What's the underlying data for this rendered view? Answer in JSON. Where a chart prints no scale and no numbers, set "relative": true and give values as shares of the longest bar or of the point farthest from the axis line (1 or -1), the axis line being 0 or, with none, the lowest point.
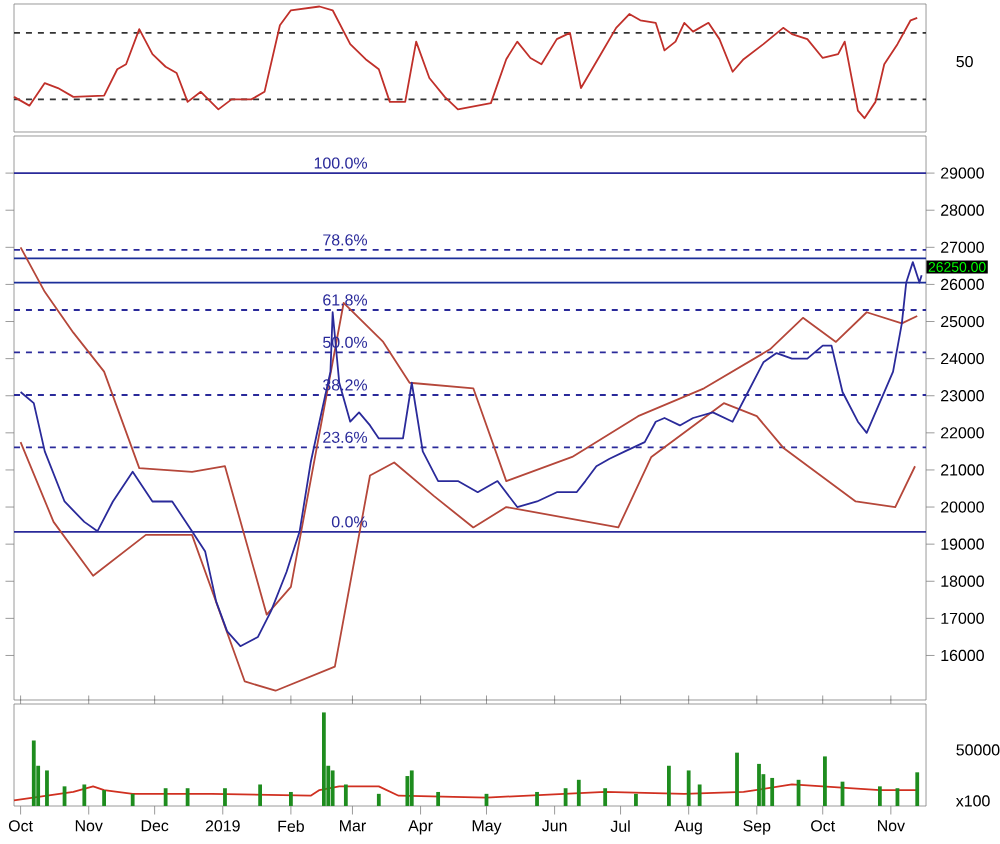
{
  "chart_data": [
    {
      "type": "line",
      "relative": true,
      "tick_labels": false,
      "xlim": [
        "2018-09-28",
        "2019-11-17"
      ],
      "annotations": [
        "50"
      ],
      "ref_lines": [
        {
          "axis": "y",
          "value": 0.79,
          "color": "#333333",
          "line_style": "dashed"
        },
        {
          "axis": "y",
          "value": 0.26,
          "color": "#333333",
          "line_style": "dashed"
        }
      ],
      "series": [
        {
          "color": "#c0302a",
          "x": [
            "2018-09-28",
            "2018-10-05",
            "2018-10-12",
            "2018-10-18",
            "2018-10-25",
            "2018-11-08",
            "2018-11-14",
            "2018-11-18",
            "2018-11-24",
            "2018-11-30",
            "2018-12-06",
            "2018-12-11",
            "2018-12-16",
            "2018-12-22",
            "2018-12-30",
            "2019-01-05",
            "2019-01-14",
            "2019-01-20",
            "2019-01-27",
            "2019-02-01",
            "2019-02-14",
            "2019-02-20",
            "2019-02-28",
            "2019-03-07",
            "2019-03-13",
            "2019-03-18",
            "2019-03-25",
            "2019-03-30",
            "2019-04-05",
            "2019-04-12",
            "2019-04-18",
            "2019-05-03",
            "2019-05-10",
            "2019-05-15",
            "2019-05-21",
            "2019-05-26",
            "2019-06-02",
            "2019-06-08",
            "2019-06-13",
            "2019-06-22",
            "2019-06-29",
            "2019-07-05",
            "2019-07-10",
            "2019-07-17",
            "2019-07-21",
            "2019-07-26",
            "2019-07-30",
            "2019-08-03",
            "2019-08-10",
            "2019-08-15",
            "2019-08-21",
            "2019-08-26",
            "2019-09-04",
            "2019-09-13",
            "2019-09-17",
            "2019-09-24",
            "2019-10-01",
            "2019-10-08",
            "2019-10-11",
            "2019-10-17",
            "2019-10-20",
            "2019-10-25",
            "2019-10-29",
            "2019-11-04",
            "2019-11-10",
            "2019-11-13"
          ],
          "values": [
            0.28,
            0.21,
            0.39,
            0.35,
            0.28,
            0.29,
            0.5,
            0.54,
            0.82,
            0.62,
            0.52,
            0.47,
            0.24,
            0.32,
            0.18,
            0.26,
            0.26,
            0.32,
            0.85,
            0.97,
            1.0,
            0.97,
            0.7,
            0.58,
            0.5,
            0.24,
            0.24,
            0.72,
            0.43,
            0.28,
            0.18,
            0.23,
            0.58,
            0.72,
            0.59,
            0.54,
            0.74,
            0.79,
            0.35,
            0.62,
            0.83,
            0.94,
            0.89,
            0.87,
            0.65,
            0.72,
            0.87,
            0.8,
            0.87,
            0.74,
            0.48,
            0.58,
            0.7,
            0.83,
            0.78,
            0.74,
            0.59,
            0.62,
            0.72,
            0.17,
            0.11,
            0.24,
            0.54,
            0.7,
            0.89,
            0.91
          ]
        }
      ]
    },
    {
      "type": "line",
      "tick_labels": "y",
      "xlim": [
        "2018-09-28",
        "2019-11-17"
      ],
      "ylim": [
        14800,
        30000
      ],
      "yticks": [
        16000,
        17000,
        18000,
        19000,
        20000,
        21000,
        22000,
        23000,
        24000,
        25000,
        26000,
        27000,
        28000,
        29000
      ],
      "annotations": [
        {
          "text": "26250.00",
          "x": "2019-11-17",
          "y": 26250
        },
        {
          "text": "100.0%",
          "x": "2019-03-09",
          "y": 29000
        },
        {
          "text": "78.6%",
          "x": "2019-03-09",
          "y": 26930
        },
        {
          "text": "61.8%",
          "x": "2019-03-09",
          "y": 25310
        },
        {
          "text": "50.0%",
          "x": "2019-03-09",
          "y": 24170
        },
        {
          "text": "38.2%",
          "x": "2019-03-09",
          "y": 23020
        },
        {
          "text": "23.6%",
          "x": "2019-03-09",
          "y": 21610
        },
        {
          "text": "0.0%",
          "x": "2019-03-09",
          "y": 19330
        }
      ],
      "ref_lines": [
        {
          "axis": "y",
          "value": 29000,
          "color": "#2a2a9a",
          "line_style": "solid"
        },
        {
          "axis": "y",
          "value": 26930,
          "color": "#2a2a9a",
          "line_style": "dashed"
        },
        {
          "axis": "y",
          "value": 25310,
          "color": "#2a2a9a",
          "line_style": "dashed"
        },
        {
          "axis": "y",
          "value": 24170,
          "color": "#2a2a9a",
          "line_style": "dashed"
        },
        {
          "axis": "y",
          "value": 23020,
          "color": "#2a2a9a",
          "line_style": "dashed"
        },
        {
          "axis": "y",
          "value": 21610,
          "color": "#2a2a9a",
          "line_style": "dashed"
        },
        {
          "axis": "y",
          "value": 19330,
          "color": "#2a2a9a",
          "line_style": "solid"
        },
        {
          "axis": "y",
          "value": 26700,
          "color": "#1c2f99",
          "line_style": "solid"
        },
        {
          "axis": "y",
          "value": 26050,
          "color": "#1c2f99",
          "line_style": "solid"
        }
      ],
      "series": [
        {
          "color": "#b5473a",
          "x": [
            "2018-10-01",
            "2018-10-12",
            "2018-10-25",
            "2018-11-08",
            "2018-11-24",
            "2018-12-18",
            "2019-01-02",
            "2019-01-21",
            "2019-02-01",
            "2019-02-25",
            "2019-03-15",
            "2019-03-27",
            "2019-04-25",
            "2019-05-10",
            "2019-06-09",
            "2019-07-09",
            "2019-08-08",
            "2019-09-07",
            "2019-09-22",
            "2019-10-07",
            "2019-10-21",
            "2019-11-06",
            "2019-11-13"
          ],
          "values": [
            27000,
            25800,
            24700,
            23650,
            21050,
            20950,
            21100,
            17100,
            17850,
            25500,
            24450,
            23350,
            23200,
            20700,
            21350,
            22450,
            23200,
            24250,
            25100,
            24450,
            25250,
            24950,
            25150
          ]
        },
        {
          "color": "#b5473a",
          "x": [
            "2018-10-01",
            "2018-10-16",
            "2018-11-03",
            "2018-11-27",
            "2018-12-18",
            "2019-01-11",
            "2019-01-25",
            "2019-02-21",
            "2019-03-09",
            "2019-03-20",
            "2019-04-07",
            "2019-04-25",
            "2019-05-10",
            "2019-06-30",
            "2019-07-15",
            "2019-08-17",
            "2019-09-01",
            "2019-09-13",
            "2019-10-16",
            "2019-11-03",
            "2019-11-12"
          ],
          "values": [
            21750,
            19600,
            18150,
            19250,
            19250,
            15300,
            15050,
            15700,
            20850,
            21200,
            20300,
            19450,
            20000,
            19450,
            21350,
            22800,
            22450,
            21600,
            20150,
            20000,
            21100
          ]
        },
        {
          "color": "#2a2a9a",
          "x": [
            "2018-10-01",
            "2018-10-07",
            "2018-10-12",
            "2018-10-21",
            "2018-10-30",
            "2018-11-05",
            "2018-11-12",
            "2018-11-21",
            "2018-11-30",
            "2018-12-09",
            "2018-12-18",
            "2018-12-24",
            "2018-12-29",
            "2019-01-03",
            "2019-01-09",
            "2019-01-17",
            "2019-01-23",
            "2019-01-30",
            "2019-02-05",
            "2019-02-10",
            "2019-02-14",
            "2019-02-19",
            "2019-02-20",
            "2019-02-23",
            "2019-02-28",
            "2019-03-04",
            "2019-03-09",
            "2019-03-13",
            "2019-03-18",
            "2019-03-24",
            "2019-03-28",
            "2019-04-02",
            "2019-04-09",
            "2019-04-18",
            "2019-04-27",
            "2019-05-06",
            "2019-05-15",
            "2019-05-24",
            "2019-06-02",
            "2019-06-11",
            "2019-06-15",
            "2019-06-20",
            "2019-06-26",
            "2019-07-03",
            "2019-07-12",
            "2019-07-17",
            "2019-07-21",
            "2019-07-28",
            "2019-08-03",
            "2019-08-12",
            "2019-08-21",
            "2019-08-28",
            "2019-09-04",
            "2019-09-10",
            "2019-09-17",
            "2019-09-24",
            "2019-10-01",
            "2019-10-05",
            "2019-10-10",
            "2019-10-17",
            "2019-10-21",
            "2019-10-25",
            "2019-10-29",
            "2019-11-02",
            "2019-11-06",
            "2019-11-08",
            "2019-11-11",
            "2019-11-14",
            "2019-11-15"
          ],
          "values": [
            23100,
            22800,
            21500,
            20150,
            19600,
            19350,
            20150,
            20950,
            20150,
            20150,
            19350,
            18800,
            17450,
            16650,
            16250,
            16500,
            17200,
            18250,
            19350,
            21200,
            22300,
            23650,
            25250,
            23350,
            22300,
            22550,
            22200,
            21850,
            21850,
            21850,
            23350,
            21500,
            20700,
            20700,
            20400,
            20700,
            20000,
            20150,
            20400,
            20400,
            20700,
            21100,
            21300,
            21500,
            21750,
            22300,
            22400,
            22200,
            22400,
            22550,
            22300,
            23100,
            23900,
            24150,
            24000,
            24000,
            24350,
            24350,
            23100,
            22300,
            22000,
            22550,
            23100,
            23650,
            24950,
            26050,
            26600,
            26050,
            26250
          ]
        }
      ]
    },
    {
      "type": "bar",
      "relative": true,
      "tick_labels": "x",
      "xlim": [
        "2018-09-28",
        "2019-11-17"
      ],
      "annotations": [
        "50000",
        "x100"
      ],
      "xticks": [
        {
          "value": "2018-10-01",
          "label": "Oct"
        },
        {
          "value": "2018-11-01",
          "label": "Nov"
        },
        {
          "value": "2018-12-01",
          "label": "Dec"
        },
        {
          "value": "2019-01-01",
          "label": "2019"
        },
        {
          "value": "2019-02-01",
          "label": "Feb"
        },
        {
          "value": "2019-03-01",
          "label": "Mar"
        },
        {
          "value": "2019-04-01",
          "label": "Apr"
        },
        {
          "value": "2019-05-01",
          "label": "May"
        },
        {
          "value": "2019-06-01",
          "label": "Jun"
        },
        {
          "value": "2019-07-01",
          "label": "Jul"
        },
        {
          "value": "2019-08-01",
          "label": "Aug"
        },
        {
          "value": "2019-09-01",
          "label": "Sep"
        },
        {
          "value": "2019-10-01",
          "label": "Oct"
        },
        {
          "value": "2019-11-01",
          "label": "Nov"
        }
      ],
      "series": [
        {
          "color": "#1e8c1e",
          "x": [
            "2018-10-07",
            "2018-10-09",
            "2018-10-13",
            "2018-10-21",
            "2018-10-30",
            "2018-11-08",
            "2018-11-21",
            "2018-12-06",
            "2018-12-16",
            "2019-01-02",
            "2019-01-18",
            "2019-02-01",
            "2019-02-16",
            "2019-02-18",
            "2019-02-20",
            "2019-02-26",
            "2019-03-13",
            "2019-03-26",
            "2019-03-28",
            "2019-04-09",
            "2019-05-01",
            "2019-05-24",
            "2019-06-06",
            "2019-06-12",
            "2019-06-24",
            "2019-07-08",
            "2019-07-23",
            "2019-08-01",
            "2019-08-06",
            "2019-08-23",
            "2019-09-02",
            "2019-09-04",
            "2019-09-08",
            "2019-09-20",
            "2019-10-02",
            "2019-10-10",
            "2019-10-27",
            "2019-11-04",
            "2019-11-13"
          ],
          "values": [
            0.7,
            0.43,
            0.38,
            0.21,
            0.23,
            0.17,
            0.13,
            0.19,
            0.19,
            0.19,
            0.23,
            0.15,
            1.0,
            0.43,
            0.38,
            0.23,
            0.13,
            0.32,
            0.38,
            0.15,
            0.13,
            0.15,
            0.19,
            0.28,
            0.19,
            0.13,
            0.43,
            0.38,
            0.23,
            0.57,
            0.45,
            0.34,
            0.3,
            0.28,
            0.53,
            0.26,
            0.21,
            0.19,
            0.36
          ]
        },
        {
          "type": "line",
          "color": "#d03020",
          "x": [
            "2018-09-28",
            "2018-10-25",
            "2018-11-03",
            "2018-11-08",
            "2018-11-21",
            "2018-12-27",
            "2019-02-10",
            "2019-02-14",
            "2019-02-23",
            "2019-03-13",
            "2019-03-22",
            "2019-05-01",
            "2019-06-24",
            "2019-07-30",
            "2019-08-26",
            "2019-09-17",
            "2019-10-01",
            "2019-10-27",
            "2019-11-13"
          ],
          "values": [
            0.06,
            0.15,
            0.21,
            0.17,
            0.13,
            0.13,
            0.11,
            0.17,
            0.21,
            0.21,
            0.11,
            0.09,
            0.15,
            0.13,
            0.15,
            0.23,
            0.21,
            0.17,
            0.17
          ]
        }
      ]
    }
  ]
}
